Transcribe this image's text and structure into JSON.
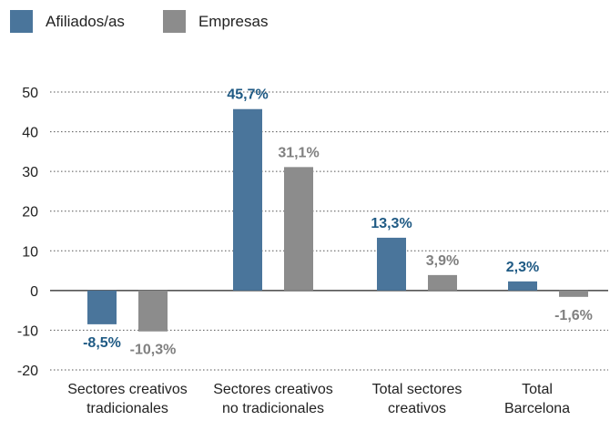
{
  "chart_data": {
    "type": "bar",
    "categories": [
      [
        "Sectores creativos",
        "tradicionales"
      ],
      [
        "Sectores creativos",
        "no tradicionales"
      ],
      [
        "Total sectores",
        "creativos"
      ],
      [
        "Total",
        "Barcelona"
      ]
    ],
    "series": [
      {
        "name": "Afiliados/as",
        "color": "#4a759b",
        "values": [
          -8.5,
          45.7,
          13.3,
          2.3
        ],
        "labels": [
          "-8,5%",
          "45,7%",
          "13,3%",
          "2,3%"
        ]
      },
      {
        "name": "Empresas",
        "color": "#8c8c8c",
        "values": [
          -10.3,
          31.1,
          3.9,
          -1.6
        ],
        "labels": [
          "-10,3%",
          "31,1%",
          "3,9%",
          "-1,6%"
        ]
      }
    ],
    "ylim": [
      -20,
      50
    ],
    "yticks": [
      "50",
      "40",
      "30",
      "20",
      "10",
      "0",
      "-10",
      "-20"
    ],
    "ytick_values": [
      50,
      40,
      30,
      20,
      10,
      0,
      -10,
      -20
    ],
    "grid": "dotted horizontal",
    "legend_position": "top-left"
  }
}
